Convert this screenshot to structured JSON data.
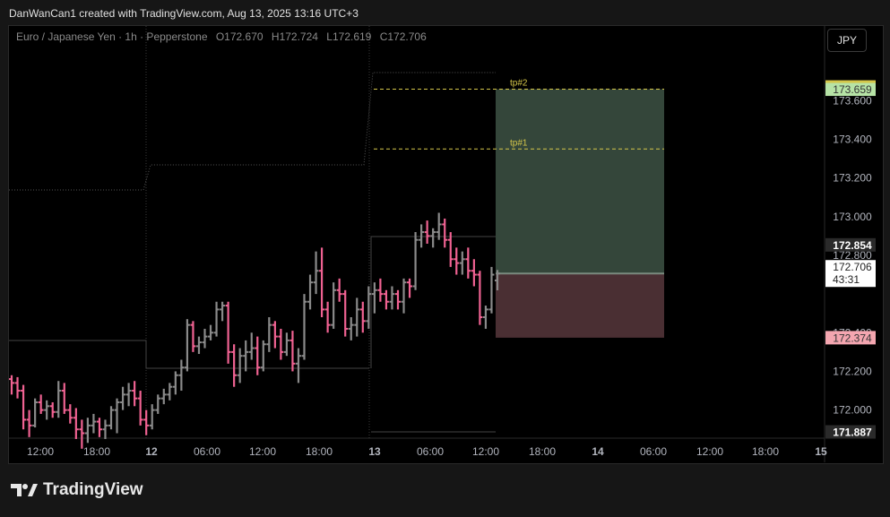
{
  "header": {
    "title": "DanWanCan1 created with TradingView.com, Aug 13, 2025 13:16 UTC+3"
  },
  "legend": {
    "symbol": "Euro / Japanese Yen · 1h · Pepperstone",
    "open": "O172.670",
    "high": "H172.724",
    "low": "L172.619",
    "close": "C172.706"
  },
  "currency_button": "JPY",
  "footer": {
    "brand": "TradingView"
  },
  "colors": {
    "up": "#8a8a8a",
    "down": "#f06292",
    "profit_zone": "#34463a",
    "loss_zone": "#4a2f33",
    "target_line": "#d4c64a"
  },
  "chart_data": {
    "type": "bar",
    "ylim": [
      171.887,
      173.745
    ],
    "y_ticks": [
      "173.600",
      "173.400",
      "173.200",
      "173.000",
      "172.800",
      "172.400",
      "172.200",
      "172.000"
    ],
    "x_ticks": [
      "12:00",
      "18:00",
      "12",
      "06:00",
      "12:00",
      "18:00",
      "13",
      "06:00",
      "12:00",
      "18:00",
      "14",
      "06:00",
      "12:00",
      "18:00",
      "15"
    ],
    "price_labels": [
      {
        "text": "173.659",
        "value": 173.659,
        "style": "tp"
      },
      {
        "text": "172.854",
        "value": 172.854,
        "style": "dark"
      },
      {
        "text": "172.706",
        "value": 172.706,
        "countdown": "43:31",
        "style": "current"
      },
      {
        "text": "172.374",
        "value": 172.374,
        "style": "sl"
      },
      {
        "text": "171.887",
        "value": 171.887,
        "style": "dark"
      }
    ],
    "targets": [
      {
        "label": "tp#2",
        "value": 173.659
      },
      {
        "label": "tp#1",
        "value": 173.35
      }
    ],
    "position": {
      "entry": 172.706,
      "take_profit": 173.659,
      "stop_loss": 172.374
    },
    "bars": [
      [
        172.16,
        172.18,
        172.08,
        172.14
      ],
      [
        172.14,
        172.17,
        172.06,
        172.1
      ],
      [
        172.1,
        172.13,
        171.9,
        171.95
      ],
      [
        171.95,
        172.0,
        171.86,
        171.92
      ],
      [
        171.92,
        172.06,
        171.91,
        172.04
      ],
      [
        172.04,
        172.08,
        171.98,
        172.0
      ],
      [
        172.0,
        172.05,
        171.95,
        172.02
      ],
      [
        172.02,
        172.04,
        171.96,
        171.99
      ],
      [
        171.99,
        172.15,
        171.96,
        172.1
      ],
      [
        172.1,
        172.14,
        171.98,
        172.0
      ],
      [
        172.0,
        172.03,
        171.93,
        171.96
      ],
      [
        171.96,
        172.01,
        171.85,
        171.9
      ],
      [
        171.9,
        171.95,
        171.8,
        171.88
      ],
      [
        171.88,
        171.96,
        171.83,
        171.92
      ],
      [
        171.92,
        171.98,
        171.88,
        171.94
      ],
      [
        171.94,
        171.96,
        171.86,
        171.9
      ],
      [
        171.9,
        171.95,
        171.85,
        171.92
      ],
      [
        171.92,
        172.02,
        171.9,
        172.0
      ],
      [
        172.0,
        172.06,
        171.88,
        172.04
      ],
      [
        172.04,
        172.12,
        172.0,
        172.08
      ],
      [
        172.08,
        172.14,
        172.02,
        172.1
      ],
      [
        172.1,
        172.15,
        172.02,
        172.06
      ],
      [
        172.06,
        172.1,
        171.92,
        171.95
      ],
      [
        171.95,
        172.0,
        171.87,
        171.92
      ],
      [
        171.92,
        172.03,
        171.9,
        172.0
      ],
      [
        172.0,
        172.08,
        171.98,
        172.06
      ],
      [
        172.06,
        172.11,
        172.03,
        172.08
      ],
      [
        172.08,
        172.14,
        172.05,
        172.12
      ],
      [
        172.12,
        172.2,
        172.08,
        172.18
      ],
      [
        172.18,
        172.26,
        172.1,
        172.22
      ],
      [
        172.22,
        172.47,
        172.2,
        172.44
      ],
      [
        172.44,
        172.46,
        172.3,
        172.33
      ],
      [
        172.33,
        172.38,
        172.29,
        172.35
      ],
      [
        172.35,
        172.42,
        172.32,
        172.38
      ],
      [
        172.38,
        172.44,
        172.36,
        172.4
      ],
      [
        172.4,
        172.56,
        172.38,
        172.52
      ],
      [
        172.52,
        172.56,
        172.46,
        172.54
      ],
      [
        172.54,
        172.56,
        172.24,
        172.3
      ],
      [
        172.3,
        172.34,
        172.12,
        172.18
      ],
      [
        172.18,
        172.32,
        172.14,
        172.28
      ],
      [
        172.28,
        172.36,
        172.2,
        172.3
      ],
      [
        172.3,
        172.4,
        172.26,
        172.32
      ],
      [
        172.32,
        172.38,
        172.18,
        172.22
      ],
      [
        172.22,
        172.36,
        172.2,
        172.34
      ],
      [
        172.34,
        172.48,
        172.3,
        172.44
      ],
      [
        172.44,
        172.46,
        172.32,
        172.38
      ],
      [
        172.38,
        172.42,
        172.26,
        172.3
      ],
      [
        172.3,
        172.4,
        172.28,
        172.36
      ],
      [
        172.36,
        172.41,
        172.2,
        172.24
      ],
      [
        172.24,
        172.32,
        172.14,
        172.28
      ],
      [
        172.28,
        172.6,
        172.26,
        172.56
      ],
      [
        172.56,
        172.7,
        172.52,
        172.66
      ],
      [
        172.66,
        172.82,
        172.6,
        172.72
      ],
      [
        172.72,
        172.84,
        172.48,
        172.52
      ],
      [
        172.52,
        172.56,
        172.4,
        172.44
      ],
      [
        172.44,
        172.66,
        172.42,
        172.62
      ],
      [
        172.62,
        172.68,
        172.56,
        172.6
      ],
      [
        172.6,
        172.62,
        172.38,
        172.42
      ],
      [
        172.42,
        172.48,
        172.36,
        172.44
      ],
      [
        172.44,
        172.58,
        172.38,
        172.52
      ],
      [
        172.52,
        172.56,
        172.4,
        172.46
      ],
      [
        172.46,
        172.64,
        172.42,
        172.6
      ],
      [
        172.6,
        172.66,
        172.5,
        172.62
      ],
      [
        172.62,
        172.68,
        172.56,
        172.6
      ],
      [
        172.6,
        172.62,
        172.52,
        172.56
      ],
      [
        172.56,
        172.64,
        172.52,
        172.6
      ],
      [
        172.6,
        172.62,
        172.52,
        172.56
      ],
      [
        172.56,
        172.68,
        172.5,
        172.66
      ],
      [
        172.66,
        172.68,
        172.58,
        172.64
      ],
      [
        172.64,
        172.92,
        172.62,
        172.88
      ],
      [
        172.88,
        172.96,
        172.84,
        172.92
      ],
      [
        172.92,
        172.98,
        172.86,
        172.9
      ],
      [
        172.9,
        172.94,
        172.84,
        172.92
      ],
      [
        172.92,
        173.02,
        172.88,
        172.96
      ],
      [
        172.96,
        172.99,
        172.84,
        172.88
      ],
      [
        172.88,
        172.92,
        172.74,
        172.78
      ],
      [
        172.78,
        172.84,
        172.7,
        172.76
      ],
      [
        172.76,
        172.82,
        172.7,
        172.78
      ],
      [
        172.78,
        172.84,
        172.68,
        172.72
      ],
      [
        172.72,
        172.78,
        172.64,
        172.7
      ],
      [
        172.7,
        172.72,
        172.44,
        172.48
      ],
      [
        172.48,
        172.54,
        172.42,
        172.52
      ],
      [
        172.52,
        172.74,
        172.5,
        172.7
      ],
      [
        172.67,
        172.724,
        172.619,
        172.706
      ]
    ]
  }
}
